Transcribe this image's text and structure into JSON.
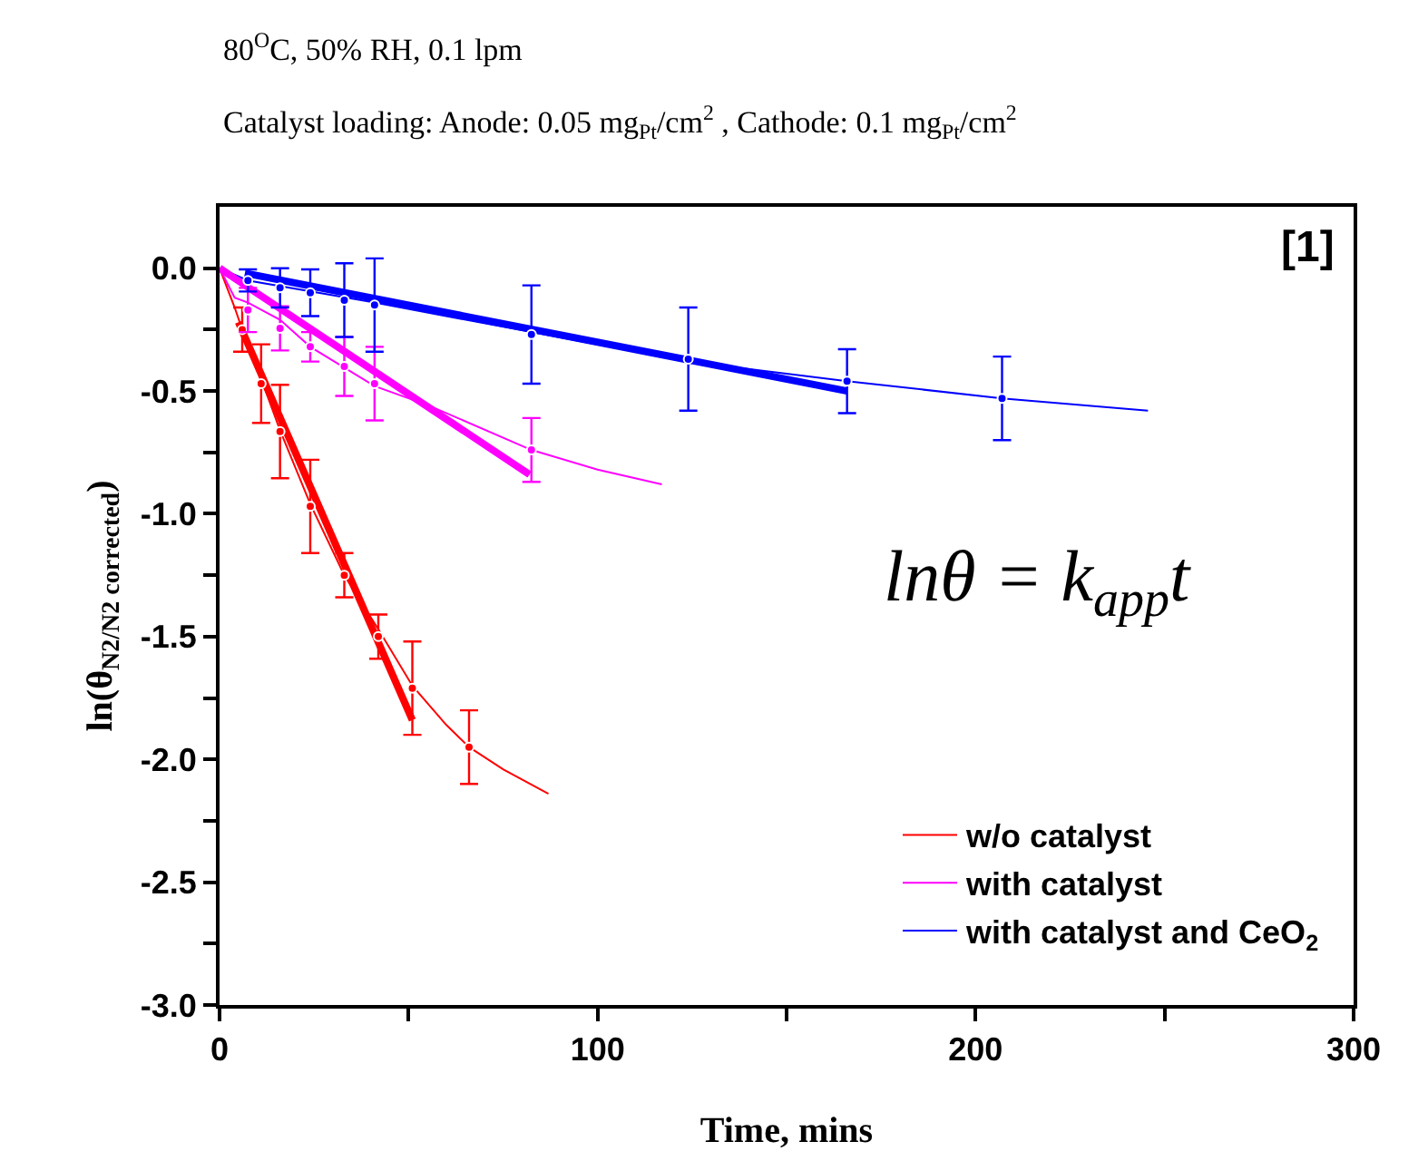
{
  "chart_data": {
    "type": "line",
    "title": "80$^{O}$C, 50% RH, 0.1 lpm",
    "subtitle": "Catalyst loading: Anode: 0.05 mg$_{Pt}$/cm$^{2}$ , Cathode: 0.1 mg$_{Pt}$/cm$^{2}$",
    "xlabel": "Time, mins",
    "ylabel": "ln(θ$_{N2/N2 corrected}$)",
    "annotations": [
      "[1]",
      "lnθ = k$_{app}$t"
    ],
    "xlim": [
      0,
      300
    ],
    "xticks": [
      0,
      {
        "value": 50,
        "label": null
      },
      100,
      {
        "value": 150,
        "label": null
      },
      200,
      {
        "value": 250,
        "label": null
      },
      300
    ],
    "ylim": [
      -3.0,
      0.25
    ],
    "yticks": [
      {
        "value": 0,
        "label": "0.0"
      },
      {
        "value": -0.25,
        "label": null
      },
      {
        "value": -0.5,
        "label": "-0.5"
      },
      {
        "value": -0.75,
        "label": null
      },
      {
        "value": -1,
        "label": "-1.0"
      },
      {
        "value": -1.25,
        "label": null
      },
      {
        "value": -1.5,
        "label": "-1.5"
      },
      {
        "value": -1.75,
        "label": null
      },
      {
        "value": -2,
        "label": "-2.0"
      },
      {
        "value": -2.25,
        "label": null
      },
      {
        "value": -2.5,
        "label": "-2.5"
      },
      {
        "value": -2.75,
        "label": null
      },
      {
        "value": -3,
        "label": "-3.0"
      }
    ],
    "grid": false,
    "legend": "bottom right",
    "series": [
      {
        "name": "w/o catalyst",
        "color": "#ff0000",
        "x": [
          0,
          4,
          6,
          11,
          16,
          24,
          33,
          42,
          51,
          60,
          66,
          75,
          87
        ],
        "values": [
          0,
          -0.16,
          -0.25,
          -0.45,
          -0.66,
          -0.96,
          -1.25,
          -1.47,
          -1.7,
          -1.86,
          -1.95,
          -2.04,
          -2.14
        ]
      },
      {
        "name": "with catalyst",
        "color": "#ff00ff",
        "x": [
          0,
          4,
          7.5,
          16,
          24,
          41,
          55.5,
          82.5,
          100,
          117
        ],
        "values": [
          0,
          -0.12,
          -0.14,
          -0.21,
          -0.32,
          -0.48,
          -0.56,
          -0.74,
          -0.82,
          -0.88
        ]
      },
      {
        "name": "with catalyst and CeO$_{2}$",
        "color": "#0000ff",
        "x": [
          0,
          7.5,
          41,
          82.5,
          124,
          166,
          207,
          245.6
        ],
        "values": [
          0,
          -0.05,
          -0.14,
          -0.26,
          -0.38,
          -0.46,
          -0.53,
          -0.58
        ]
      },
      {
        "color": "#ff0000",
        "x": [
          5,
          51
        ],
        "values": [
          -0.22,
          -1.84
        ]
      },
      {
        "color": "#ff00ff",
        "x": [
          0,
          82
        ],
        "values": [
          0,
          -0.84
        ]
      },
      {
        "color": "#0000ff",
        "x": [
          6.7,
          166
        ],
        "values": [
          -0.02,
          -0.5
        ]
      },
      {
        "color": "#ff0000",
        "type": "scatter",
        "x": [
          6,
          11,
          16,
          24,
          33,
          42,
          51,
          66
        ],
        "values": [
          -0.25,
          -0.47,
          -0.665,
          -0.97,
          -1.25,
          -1.5,
          -1.71,
          -1.95
        ],
        "errors": [
          0.09,
          0.16,
          0.19,
          0.19,
          0.09,
          0.09,
          0.19,
          0.15
        ]
      },
      {
        "color": "#ff00ff",
        "type": "scatter",
        "x": [
          7.5,
          16,
          24,
          33,
          41,
          82.5
        ],
        "values": [
          -0.17,
          -0.245,
          -0.32,
          -0.4,
          -0.47,
          -0.74
        ],
        "errors": [
          0.09,
          0.09,
          0.06,
          0.12,
          0.15,
          0.13
        ]
      },
      {
        "color": "#0000ff",
        "type": "scatter",
        "x": [
          7.5,
          16,
          24,
          33,
          41,
          82.5,
          124,
          166,
          207
        ],
        "values": [
          -0.05,
          -0.08,
          -0.1,
          -0.13,
          -0.15,
          -0.27,
          -0.37,
          -0.46,
          -0.53
        ],
        "errors": [
          0.045,
          0.08,
          0.095,
          0.15,
          0.19,
          0.2,
          0.21,
          0.13,
          0.17
        ]
      }
    ]
  }
}
